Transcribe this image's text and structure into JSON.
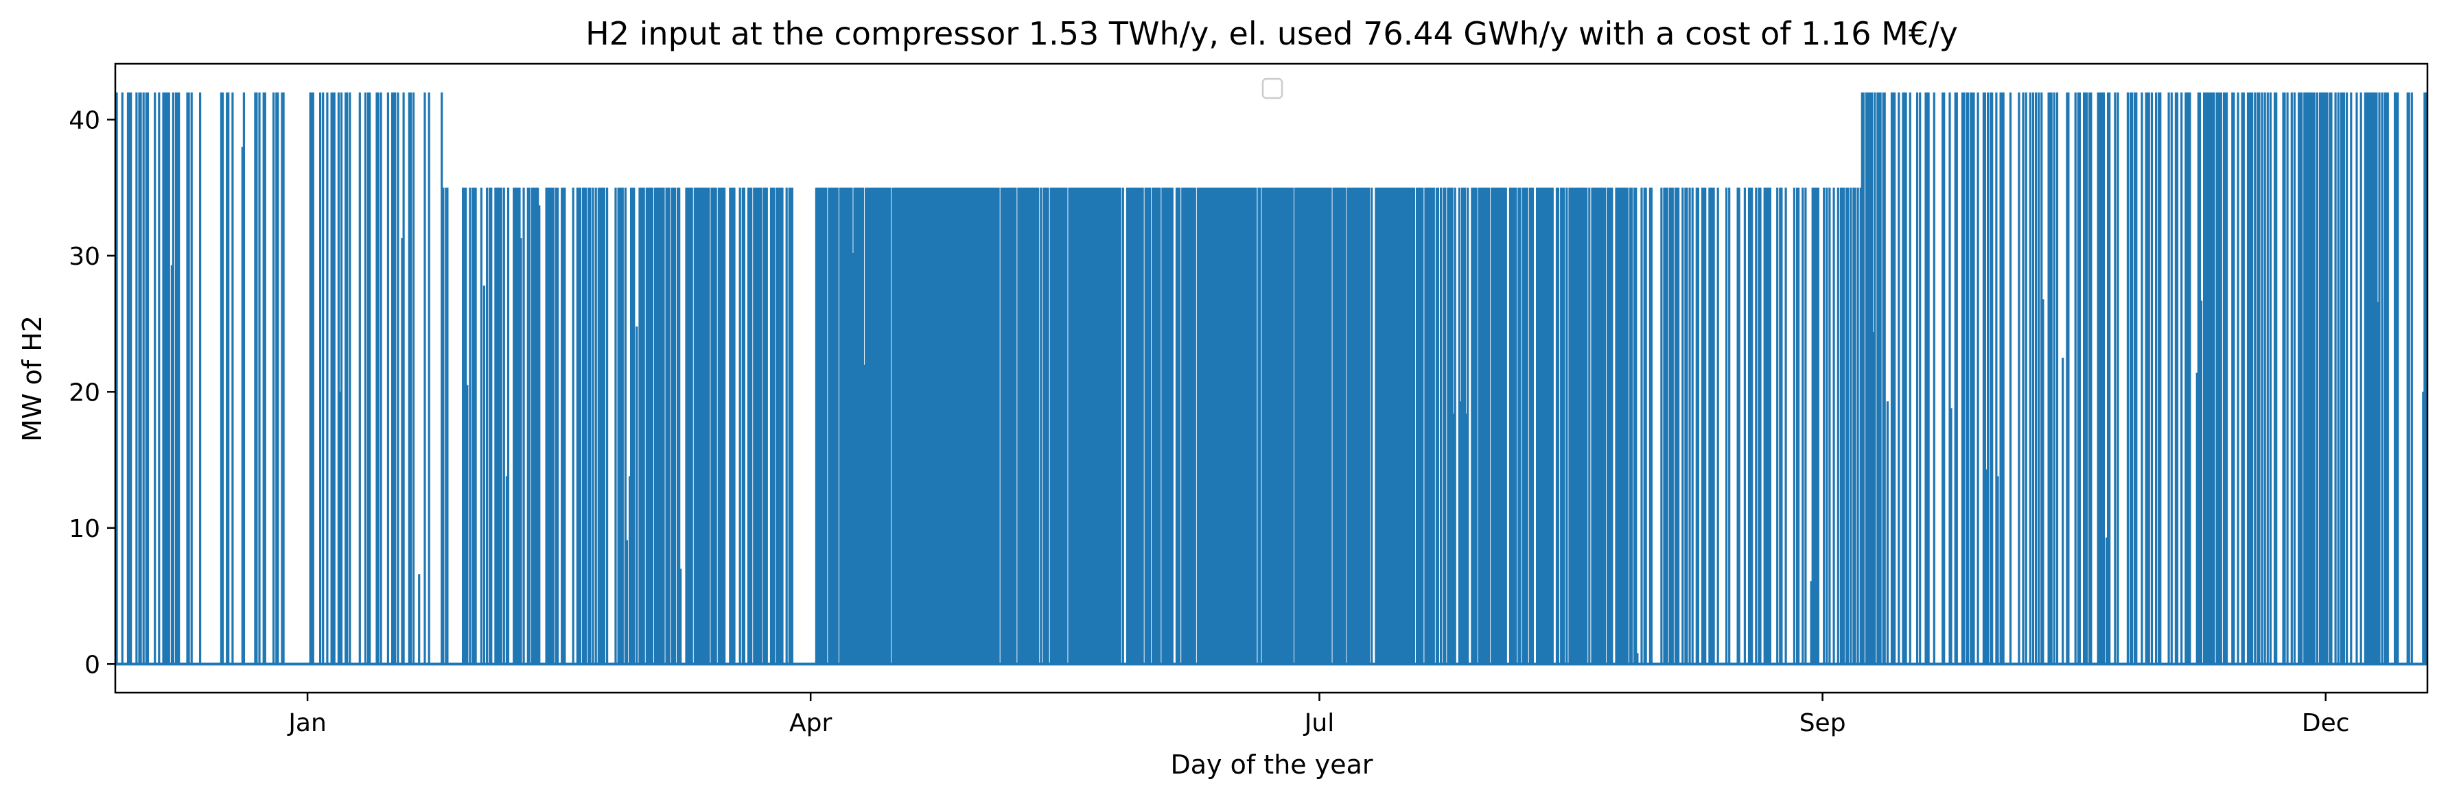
{
  "chart_data": {
    "type": "line",
    "title": "H2 input at the compressor 1.53 TWh/y, el. used 76.44 GWh/y with a cost of 1.16 M€/y",
    "xlabel": "Day of the year",
    "ylabel": "MW of H2",
    "x_ticks": [
      "Jan",
      "Apr",
      "Jul",
      "Sep",
      "Dec"
    ],
    "y_ticks": [
      0,
      10,
      20,
      30,
      40
    ],
    "xlim": [
      -34,
      375
    ],
    "ylim": [
      -2.1,
      44.1
    ],
    "grid": false,
    "legend": "top-center, empty",
    "color": "#1f77b4",
    "x_tick_days": [
      0,
      89,
      179,
      268,
      357
    ],
    "series": [
      {
        "name": "",
        "segments": [
          {
            "x": [
              -34,
              -20
            ],
            "high": 42.0,
            "density": 0.45,
            "peaks": [
              29.3,
              24.0,
              9.1,
              22.0,
              23.0,
              13.8,
              42.0
            ]
          },
          {
            "x": [
              -20,
              -16
            ],
            "high": 42.0,
            "density": 0.15,
            "peaks": [
              1.2
            ]
          },
          {
            "x": [
              -16,
              -4
            ],
            "high": 42.0,
            "density": 0.35,
            "peaks": [
              38.0,
              42.0
            ]
          },
          {
            "x": [
              -4,
              0
            ],
            "high": 0.0,
            "density": 0.0,
            "peaks": []
          },
          {
            "x": [
              0,
              24
            ],
            "high": 42.0,
            "density": 0.45,
            "peaks": [
              20.0,
              31.3,
              6.6,
              13.8,
              41.0,
              10.7
            ]
          },
          {
            "x": [
              24,
              55
            ],
            "high": 35.0,
            "density": 0.55,
            "peaks": [
              20.5,
              27.8,
              13.8,
              31.3,
              33.7
            ]
          },
          {
            "x": [
              55,
              86
            ],
            "high": 35.0,
            "density": 0.75,
            "peaks": [
              9.1,
              13.8,
              24.8,
              7.0
            ]
          },
          {
            "x": [
              86,
              90
            ],
            "high": 0.0,
            "density": 0.0,
            "peaks": []
          },
          {
            "x": [
              90,
              200
            ],
            "high": 35.0,
            "density": 0.92,
            "peaks": [
              30.2,
              22.0
            ]
          },
          {
            "x": [
              200,
              232
            ],
            "high": 35.0,
            "density": 0.8,
            "peaks": [
              18.4,
              19.3,
              18.4
            ]
          },
          {
            "x": [
              232,
              267
            ],
            "high": 35.0,
            "density": 0.55,
            "peaks": [
              0.8,
              6.1
            ]
          },
          {
            "x": [
              267,
              275
            ],
            "high": 35.0,
            "density": 0.35,
            "peaks": [
              23.6,
              22.0,
              18.2
            ]
          },
          {
            "x": [
              275,
              318
            ],
            "high": 42.0,
            "density": 0.45,
            "peaks": [
              24.4,
              19.3,
              18.8,
              14.3,
              13.8,
              26.8,
              22.5,
              0.6
            ]
          },
          {
            "x": [
              318,
              375
            ],
            "high": 42.0,
            "density": 0.55,
            "peaks": [
              9.3,
              21.4,
              26.7,
              26.6,
              20.0,
              6.0
            ]
          }
        ]
      }
    ]
  }
}
